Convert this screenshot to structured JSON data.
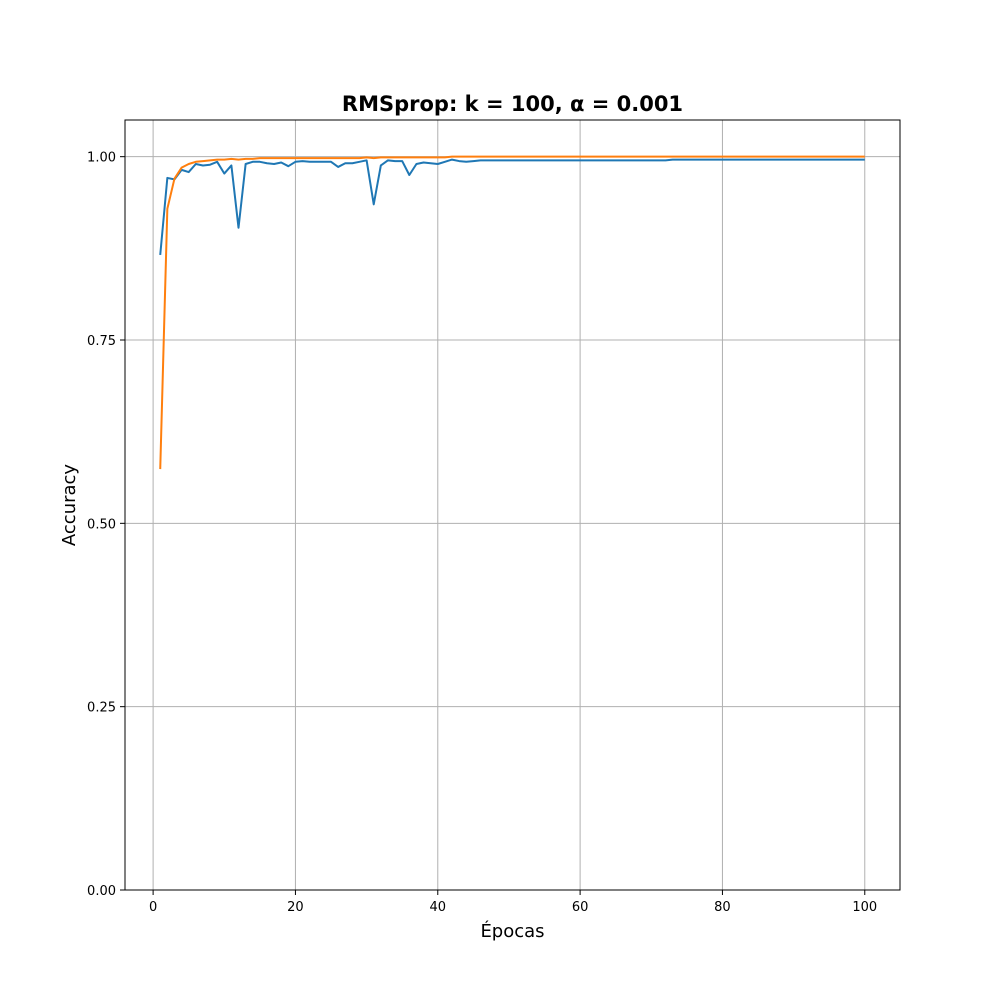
{
  "chart_data": {
    "type": "line",
    "title": "RMSprop: k = 100, α = 0.001",
    "xlabel": "Épocas",
    "ylabel": "Accuracy",
    "xlim": [
      -3.95,
      104.95
    ],
    "ylim": [
      0,
      1.05
    ],
    "xticks": [
      0,
      20,
      40,
      60,
      80,
      100
    ],
    "yticks": [
      0.0,
      0.25,
      0.5,
      0.75,
      1.0
    ],
    "xtick_labels": [
      "0",
      "20",
      "40",
      "60",
      "80",
      "100"
    ],
    "ytick_labels": [
      "0.00",
      "0.25",
      "0.50",
      "0.75",
      "1.00"
    ],
    "grid": true,
    "legend": false,
    "series": [
      {
        "color": "#1f77b4",
        "x_start": 1,
        "values": [
          0.866,
          0.971,
          0.969,
          0.982,
          0.979,
          0.99,
          0.988,
          0.989,
          0.993,
          0.977,
          0.988,
          0.903,
          0.99,
          0.993,
          0.993,
          0.991,
          0.99,
          0.992,
          0.987,
          0.993,
          0.994,
          0.993,
          0.993,
          0.993,
          0.993,
          0.986,
          0.991,
          0.991,
          0.993,
          0.995,
          0.935,
          0.988,
          0.995,
          0.994,
          0.994,
          0.975,
          0.99,
          0.992,
          0.991,
          0.99,
          0.993,
          0.996,
          0.994,
          0.993,
          0.994,
          0.995,
          0.995,
          0.995,
          0.995,
          0.995,
          0.995,
          0.995,
          0.995,
          0.995,
          0.995,
          0.995,
          0.995,
          0.995,
          0.995,
          0.995,
          0.995,
          0.995,
          0.995,
          0.995,
          0.995,
          0.995,
          0.995,
          0.995,
          0.995,
          0.995,
          0.995,
          0.995,
          0.996,
          0.996,
          0.996,
          0.996,
          0.996,
          0.996,
          0.996,
          0.996,
          0.996,
          0.996,
          0.996,
          0.996,
          0.996,
          0.996,
          0.996,
          0.996,
          0.996,
          0.996,
          0.996,
          0.996,
          0.996,
          0.996,
          0.996,
          0.996,
          0.996,
          0.996,
          0.996,
          0.996
        ]
      },
      {
        "color": "#ff7f0e",
        "x_start": 1,
        "values": [
          0.574,
          0.929,
          0.97,
          0.985,
          0.99,
          0.993,
          0.994,
          0.995,
          0.996,
          0.996,
          0.997,
          0.996,
          0.997,
          0.997,
          0.998,
          0.998,
          0.998,
          0.998,
          0.998,
          0.998,
          0.998,
          0.998,
          0.998,
          0.998,
          0.998,
          0.998,
          0.998,
          0.998,
          0.998,
          0.999,
          0.998,
          0.999,
          0.999,
          0.999,
          0.999,
          0.999,
          0.999,
          0.999,
          0.999,
          0.999,
          0.999,
          1.0,
          1.0,
          1.0,
          1.0,
          1.0,
          1.0,
          1.0,
          1.0,
          1.0,
          1.0,
          1.0,
          1.0,
          1.0,
          1.0,
          1.0,
          1.0,
          1.0,
          1.0,
          1.0,
          1.0,
          1.0,
          1.0,
          1.0,
          1.0,
          1.0,
          1.0,
          1.0,
          1.0,
          1.0,
          1.0,
          1.0,
          1.0,
          1.0,
          1.0,
          1.0,
          1.0,
          1.0,
          1.0,
          1.0,
          1.0,
          1.0,
          1.0,
          1.0,
          1.0,
          1.0,
          1.0,
          1.0,
          1.0,
          1.0,
          1.0,
          1.0,
          1.0,
          1.0,
          1.0,
          1.0,
          1.0,
          1.0,
          1.0,
          1.0
        ]
      }
    ]
  }
}
